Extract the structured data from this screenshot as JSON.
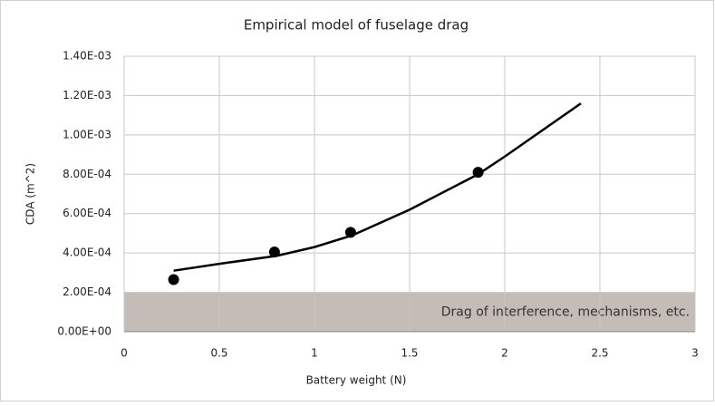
{
  "chart_data": {
    "type": "scatter",
    "title": "Empirical model of fuselage drag",
    "x_label": "Battery weight (N)",
    "y_label": "CDA (m^2)",
    "xlim": [
      0,
      3
    ],
    "xticks": [
      0,
      0.5,
      1,
      1.5,
      2,
      2.5,
      3
    ],
    "ylim": [
      0,
      0.0014
    ],
    "yticks": [
      {
        "value": 0,
        "label": "0.00E+00"
      },
      {
        "value": 0.0002,
        "label": "2.00E-04"
      },
      {
        "value": 0.0004,
        "label": "4.00E-04"
      },
      {
        "value": 0.0006,
        "label": "6.00E-04"
      },
      {
        "value": 0.0008,
        "label": "8.00E-04"
      },
      {
        "value": 0.001,
        "label": "1.00E-03"
      },
      {
        "value": 0.0012,
        "label": "1.20E-03"
      },
      {
        "value": 0.0014,
        "label": "1.40E-03"
      }
    ],
    "grid": true,
    "band": {
      "y0": 0,
      "y1": 0.0002,
      "label": "Drag of interference, mechanisms, etc.",
      "color": "#c4bcb7"
    },
    "series": [
      {
        "type": "scatter",
        "color": "#000000",
        "x": [
          0.26,
          0.79,
          1.19,
          1.86
        ],
        "values": [
          0.000265,
          0.000405,
          0.000505,
          0.00081
        ]
      },
      {
        "type": "line",
        "color": "#000000",
        "x": [
          0.26,
          0.5,
          0.8,
          1.0,
          1.2,
          1.5,
          1.86,
          2.0,
          2.4
        ],
        "values": [
          0.00031,
          0.000345,
          0.000385,
          0.00043,
          0.00049,
          0.00062,
          0.0008,
          0.00089,
          0.00116
        ]
      }
    ]
  }
}
